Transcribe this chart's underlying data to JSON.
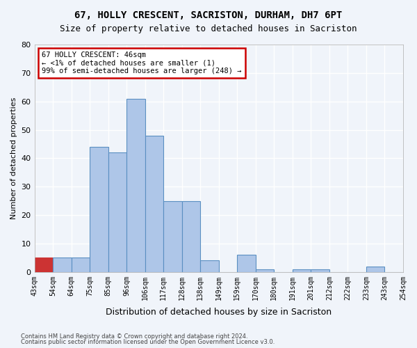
{
  "title_line1": "67, HOLLY CRESCENT, SACRISTON, DURHAM, DH7 6PT",
  "title_line2": "Size of property relative to detached houses in Sacriston",
  "xlabel": "Distribution of detached houses by size in Sacriston",
  "ylabel": "Number of detached properties",
  "bin_labels": [
    "43sqm",
    "54sqm",
    "64sqm",
    "75sqm",
    "85sqm",
    "96sqm",
    "106sqm",
    "117sqm",
    "128sqm",
    "138sqm",
    "149sqm",
    "159sqm",
    "170sqm",
    "180sqm",
    "191sqm",
    "201sqm",
    "212sqm",
    "222sqm",
    "233sqm",
    "243sqm",
    "254sqm"
  ],
  "bar_heights": [
    5,
    5,
    5,
    44,
    42,
    61,
    48,
    25,
    25,
    4,
    0,
    6,
    1,
    0,
    1,
    1,
    0,
    0,
    2,
    0
  ],
  "bar_color": "#aec6e8",
  "bar_edge_color": "#5a8fc2",
  "annotation_text": "67 HOLLY CRESCENT: 46sqm\n← <1% of detached houses are smaller (1)\n99% of semi-detached houses are larger (248) →",
  "annotation_box_color": "#ffffff",
  "annotation_box_edge_color": "#cc0000",
  "highlight_bar_index": 0,
  "highlight_bar_color": "#cc3333",
  "ylim": [
    0,
    80
  ],
  "yticks": [
    0,
    10,
    20,
    30,
    40,
    50,
    60,
    70,
    80
  ],
  "background_color": "#f0f4fa",
  "grid_color": "#ffffff",
  "footer_line1": "Contains HM Land Registry data © Crown copyright and database right 2024.",
  "footer_line2": "Contains public sector information licensed under the Open Government Licence v3.0."
}
